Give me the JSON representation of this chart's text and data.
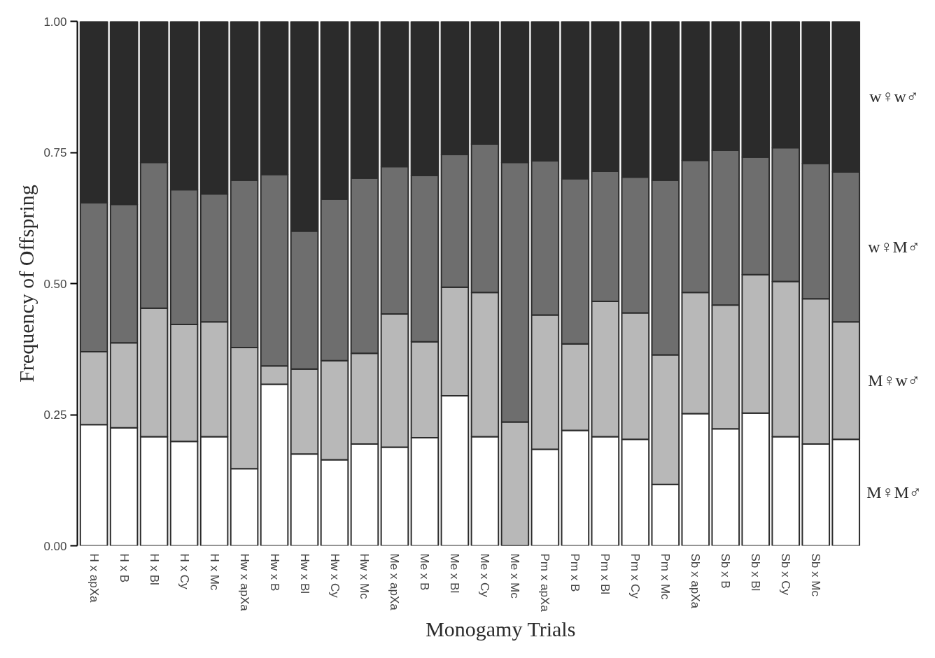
{
  "chart_data": {
    "type": "bar",
    "stacked": true,
    "xlabel": "Monogamy Trials",
    "ylabel": "Frequency of Offspring",
    "categories": [
      "H x apXa",
      "H x B",
      "H x Bl",
      "H x Cy",
      "H x Mc",
      "Hw x apXa",
      "Hw x B",
      "Hw x Bl",
      "Hw x Cy",
      "Hw x Mc",
      "Me x apXa",
      "Me x B",
      "Me x Bl",
      "Me x Cy",
      "Me x Mc",
      "Pm x apXa",
      "Pm x B",
      "Pm x Bl",
      "Pm x Cy",
      "Pm x Mc",
      "Sb x apXa",
      "Sb x B",
      "Sb x Bl",
      "Sb x Cy",
      "Sb x Mc",
      null
    ],
    "series": [
      {
        "name": "M♀M♂",
        "color": "#ffffff",
        "values": [
          0.231,
          0.225,
          0.208,
          0.199,
          0.208,
          0.147,
          0.308,
          0.175,
          0.164,
          0.194,
          0.188,
          0.206,
          0.286,
          0.208,
          0,
          0.184,
          0.22,
          0.208,
          0.203,
          0.117,
          0.252,
          0.223,
          0.253,
          0.208,
          0.194,
          0.203
        ]
      },
      {
        "name": "M♀w♂",
        "color": "#b8b8b8",
        "values": [
          0.139,
          0.162,
          0.245,
          0.223,
          0.219,
          0.231,
          0.035,
          0.162,
          0.189,
          0.173,
          0.254,
          0.183,
          0.207,
          0.275,
          0.236,
          0.256,
          0.165,
          0.258,
          0.241,
          0.247,
          0.231,
          0.236,
          0.264,
          0.296,
          0.277,
          0.224
        ]
      },
      {
        "name": "w♀M♂",
        "color": "#6e6e6e",
        "values": [
          0.284,
          0.264,
          0.278,
          0.257,
          0.244,
          0.319,
          0.365,
          0.263,
          0.308,
          0.334,
          0.281,
          0.317,
          0.253,
          0.283,
          0.495,
          0.294,
          0.315,
          0.248,
          0.259,
          0.333,
          0.252,
          0.295,
          0.224,
          0.255,
          0.258,
          0.286
        ]
      },
      {
        "name": "w♀w♂",
        "color": "#2b2b2b",
        "values": [
          0.346,
          0.349,
          0.269,
          0.321,
          0.329,
          0.303,
          0.292,
          0.4,
          0.339,
          0.299,
          0.277,
          0.294,
          0.254,
          0.234,
          0.269,
          0.266,
          0.3,
          0.286,
          0.297,
          0.303,
          0.265,
          0.246,
          0.259,
          0.241,
          0.271,
          0.287
        ]
      }
    ],
    "ylim": [
      0,
      1
    ],
    "yticks": [
      {
        "value": 0,
        "label": "0.00"
      },
      {
        "value": 0.25,
        "label": "0.25"
      },
      {
        "value": 0.5,
        "label": "0.50"
      },
      {
        "value": 0.75,
        "label": "0.75"
      },
      {
        "value": 1,
        "label": "1.00"
      }
    ],
    "grid": false
  }
}
